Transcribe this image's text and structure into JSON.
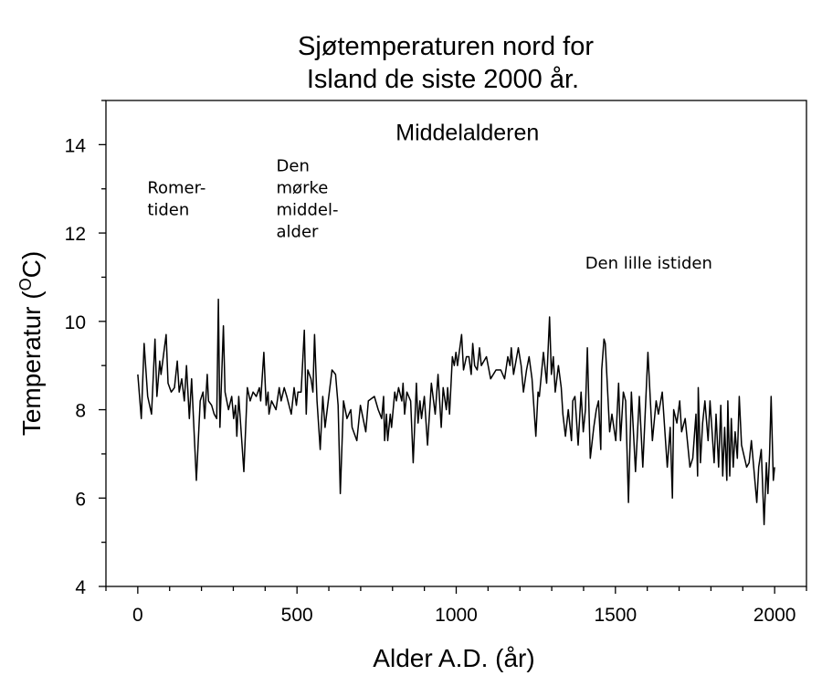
{
  "chart_data": {
    "type": "line",
    "title_lines": [
      "Sjøtemperaturen nord for",
      "Island  de siste 2000 år."
    ],
    "xlabel": "Alder A.D. (år)",
    "ylabel_main": "Temperatur (",
    "ylabel_sup": "O",
    "ylabel_end": "C)",
    "xlim": [
      -100,
      2100
    ],
    "ylim": [
      4,
      15
    ],
    "xticks": [
      0,
      500,
      1000,
      1500,
      2000
    ],
    "xtick_labels": [
      "0",
      "500",
      "1000",
      "1500",
      "2000"
    ],
    "yticks": [
      4,
      6,
      8,
      10,
      12,
      14
    ],
    "ytick_labels": [
      "4",
      "6",
      "8",
      "10",
      "12",
      "14"
    ],
    "grid": false,
    "line_color": "#000000",
    "annotations": [
      {
        "lines": [
          "Romer-",
          "tiden"
        ],
        "x": 30,
        "y": 12.9
      },
      {
        "lines": [
          "Den",
          "mørke",
          "middel-",
          "alder"
        ],
        "x": 435,
        "y": 13.4
      },
      {
        "lines": [
          "Middelalderen"
        ],
        "x": 810,
        "y": 14.1
      },
      {
        "lines": [
          "Den lille istiden"
        ],
        "x": 1405,
        "y": 11.2
      }
    ],
    "series": [
      {
        "x": [
          0,
          11,
          20,
          31,
          43,
          54,
          60,
          69,
          73,
          89,
          95,
          105,
          115,
          124,
          130,
          138,
          146,
          153,
          162,
          169,
          184,
          196,
          205,
          210,
          218,
          222,
          232,
          240,
          248,
          253,
          258,
          269,
          274,
          285,
          295,
          301,
          307,
          311,
          317,
          333,
          344,
          353,
          362,
          372,
          382,
          386,
          396,
          403,
          409,
          412,
          420,
          434,
          444,
          450,
          460,
          468,
          482,
          491,
          498,
          503,
          513,
          523,
          529,
          534,
          544,
          550,
          555,
          563,
          573,
          581,
          588,
          600,
          610,
          621,
          629,
          636,
          646,
          657,
          669,
          673,
          688,
          699,
          716,
          724,
          743,
          755,
          766,
          772,
          775,
          781,
          785,
          793,
          797,
          807,
          812,
          819,
          829,
          833,
          838,
          845,
          857,
          865,
          875,
          880,
          886,
          891,
          900,
          910,
          922,
          934,
          943,
          953,
          959,
          969,
          973,
          979,
          988,
          994,
          999,
          1004,
          1017,
          1023,
          1032,
          1040,
          1047,
          1052,
          1058,
          1066,
          1073,
          1079,
          1095,
          1108,
          1125,
          1140,
          1152,
          1162,
          1169,
          1173,
          1180,
          1195,
          1204,
          1211,
          1221,
          1229,
          1238,
          1250,
          1257,
          1261,
          1274,
          1284,
          1293,
          1299,
          1305,
          1311,
          1321,
          1330,
          1335,
          1343,
          1352,
          1362,
          1366,
          1373,
          1383,
          1392,
          1399,
          1406,
          1412,
          1421,
          1432,
          1440,
          1447,
          1454,
          1457,
          1464,
          1468,
          1475,
          1482,
          1489,
          1501,
          1510,
          1516,
          1525,
          1532,
          1541,
          1550,
          1563,
          1575,
          1586,
          1602,
          1616,
          1628,
          1635,
          1647,
          1663,
          1672,
          1679,
          1683,
          1693,
          1702,
          1708,
          1719,
          1734,
          1743,
          1753,
          1758,
          1760,
          1767,
          1774,
          1781,
          1791,
          1797,
          1810,
          1816,
          1824,
          1831,
          1837,
          1843,
          1850,
          1853,
          1859,
          1864,
          1870,
          1876,
          1883,
          1889,
          1896,
          1912,
          1920,
          1927,
          1944,
          1950,
          1958,
          1967,
          1974,
          1979,
          1984,
          1989,
          1996,
          2000
        ],
        "y": [
          8.8,
          7.8,
          9.5,
          8.3,
          7.9,
          9.6,
          8.3,
          9.1,
          8.8,
          9.7,
          8.6,
          8.4,
          8.5,
          9.1,
          8.4,
          8.7,
          8.2,
          9.0,
          7.8,
          8.7,
          6.4,
          8.2,
          8.4,
          7.8,
          8.8,
          8.2,
          8.1,
          7.9,
          7.8,
          10.5,
          7.6,
          9.9,
          8.4,
          8.0,
          8.3,
          7.8,
          8.1,
          7.4,
          8.3,
          6.6,
          8.5,
          8.2,
          8.4,
          8.3,
          8.5,
          8.2,
          9.3,
          8.1,
          8.4,
          7.9,
          8.2,
          8.0,
          8.5,
          8.2,
          8.5,
          8.3,
          7.9,
          8.5,
          8.1,
          8.4,
          8.4,
          9.8,
          7.9,
          8.9,
          8.7,
          8.4,
          9.7,
          8.2,
          7.1,
          8.3,
          7.6,
          8.3,
          8.9,
          8.8,
          8.1,
          6.1,
          8.2,
          7.8,
          8.0,
          7.6,
          7.3,
          8.1,
          7.5,
          8.2,
          8.3,
          8.0,
          7.8,
          8.3,
          7.3,
          7.9,
          7.3,
          7.9,
          7.6,
          8.4,
          8.2,
          8.5,
          8.2,
          8.6,
          7.9,
          8.4,
          8.2,
          6.8,
          8.6,
          7.7,
          8.2,
          7.8,
          8.3,
          7.2,
          8.6,
          7.9,
          8.8,
          7.6,
          8.5,
          8.0,
          8.5,
          7.9,
          9.2,
          9.0,
          9.3,
          9.0,
          9.7,
          8.9,
          9.2,
          9.2,
          8.8,
          9.5,
          9.0,
          8.9,
          9.4,
          9.0,
          9.2,
          8.7,
          8.9,
          8.9,
          8.7,
          9.2,
          9.0,
          9.4,
          8.8,
          9.4,
          9.0,
          8.4,
          8.9,
          9.2,
          8.7,
          7.4,
          8.4,
          8.3,
          9.3,
          8.6,
          10.1,
          8.8,
          9.2,
          8.4,
          9.0,
          8.5,
          7.9,
          7.4,
          8.0,
          7.3,
          8.2,
          8.3,
          7.2,
          8.4,
          7.5,
          8.0,
          9.4,
          6.9,
          7.6,
          8.0,
          8.2,
          7.1,
          8.9,
          9.6,
          9.5,
          8.5,
          7.5,
          7.9,
          7.3,
          8.6,
          7.3,
          8.4,
          8.2,
          5.9,
          8.4,
          6.6,
          8.3,
          6.7,
          9.3,
          7.3,
          8.2,
          7.9,
          8.4,
          6.7,
          7.6,
          6.0,
          8.0,
          7.7,
          8.2,
          7.5,
          7.8,
          6.7,
          6.9,
          7.9,
          6.5,
          8.5,
          6.8,
          7.7,
          8.2,
          7.3,
          8.2,
          6.8,
          7.9,
          6.7,
          8.1,
          6.5,
          7.6,
          6.4,
          8.2,
          6.5,
          7.8,
          6.7,
          7.5,
          6.9,
          8.3,
          7.2,
          6.7,
          6.8,
          7.3,
          5.9,
          6.7,
          7.1,
          5.4,
          6.8,
          6.1,
          7.0,
          8.3,
          6.4,
          6.7
        ]
      }
    ]
  }
}
